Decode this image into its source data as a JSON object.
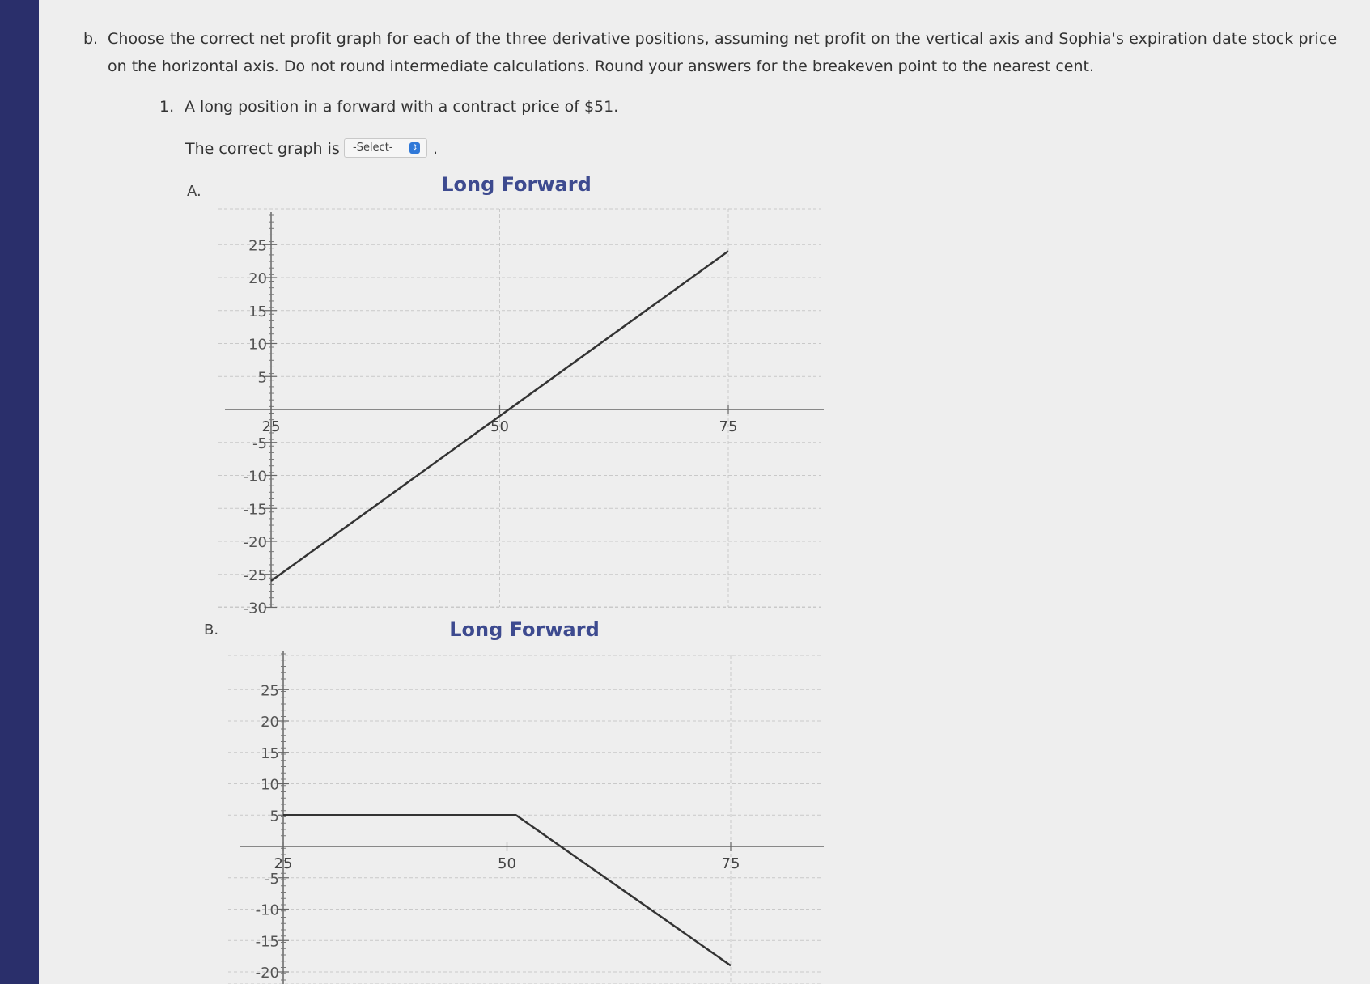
{
  "question": {
    "part_label": "b.",
    "line1": "Choose the correct net profit graph for each of the three derivative positions, assuming net profit on the vertical axis and Sophia's expiration date stock price",
    "line2": "on the horizontal axis. Do not round intermediate calculations. Round your answers for the breakeven point to the nearest cent.",
    "sub_number": "1.",
    "sub_text": "A long position in a forward with a contract price of $51.",
    "prompt": "The correct graph is",
    "select_value": "-Select-",
    "trailing_period": "."
  },
  "options": [
    {
      "label": "A."
    },
    {
      "label": "B."
    }
  ],
  "chart_data": [
    {
      "type": "line",
      "title": "Long Forward",
      "xlabel": "",
      "ylabel": "",
      "xlim": [
        25,
        75
      ],
      "ylim": [
        -30,
        25
      ],
      "x_ticks": [
        25,
        50,
        75
      ],
      "y_ticks": [
        25,
        20,
        15,
        10,
        5,
        -5,
        -10,
        -15,
        -20,
        -25,
        -30
      ],
      "grid": true,
      "series": [
        {
          "x": [
            25,
            75
          ],
          "y": [
            -26,
            24
          ]
        }
      ]
    },
    {
      "type": "line",
      "title": "Long Forward",
      "xlabel": "",
      "ylabel": "",
      "xlim": [
        25,
        75
      ],
      "ylim": [
        -20,
        25
      ],
      "x_ticks": [
        25,
        50,
        75
      ],
      "y_ticks": [
        25,
        20,
        15,
        10,
        5,
        -5,
        -10,
        -15,
        -20
      ],
      "grid": true,
      "series": [
        {
          "x": [
            25,
            51,
            75
          ],
          "y": [
            5,
            5,
            -19
          ]
        }
      ]
    }
  ],
  "colors": {
    "background": "#eeeeee",
    "title": "#3d4a8f",
    "line": "#333333",
    "grid": "#c8c8c8",
    "select_icon": "#2f78d8"
  }
}
